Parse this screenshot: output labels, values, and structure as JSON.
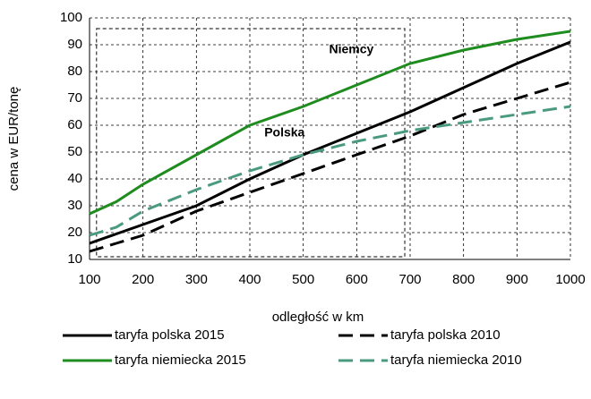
{
  "chart_data": {
    "type": "line",
    "x_label": "odległość w km",
    "y_label": "cena w EUR/tonę",
    "x": [
      100,
      150,
      200,
      300,
      400,
      500,
      600,
      700,
      800,
      900,
      1000
    ],
    "series": [
      {
        "name": "taryfa polska 2015",
        "color": "#000000",
        "dash": false,
        "values": [
          16,
          19.5,
          23,
          30,
          40,
          49,
          57,
          65,
          74,
          83,
          91
        ]
      },
      {
        "name": "taryfa polska 2010",
        "color": "#000000",
        "dash": true,
        "values": [
          13,
          16,
          19,
          28,
          35,
          42,
          49,
          56,
          64,
          70,
          76
        ]
      },
      {
        "name": "taryfa niemiecka 2015",
        "color": "#1e8c1e",
        "dash": false,
        "values": [
          27,
          31.5,
          38,
          49,
          60,
          67,
          75,
          83,
          88,
          92,
          95
        ]
      },
      {
        "name": "taryfa niemiecka 2010",
        "color": "#4a9a80",
        "dash": true,
        "values": [
          19,
          22,
          28,
          36,
          43,
          49,
          54,
          58,
          61,
          64,
          67
        ]
      }
    ],
    "annotations": [
      {
        "text": "Niemcy",
        "x": 590,
        "y": 88
      },
      {
        "text": "Polska",
        "x": 465,
        "y": 57
      }
    ],
    "region": {
      "xlim": [
        113,
        690
      ],
      "ylim": [
        11,
        96
      ]
    },
    "xlim": [
      100,
      1000
    ],
    "xticks": [
      100,
      200,
      300,
      400,
      500,
      600,
      700,
      800,
      900,
      1000
    ],
    "ylim": [
      10,
      100
    ],
    "yticks": [
      10,
      20,
      30,
      40,
      50,
      60,
      70,
      80,
      90,
      100
    ],
    "grid": true
  }
}
